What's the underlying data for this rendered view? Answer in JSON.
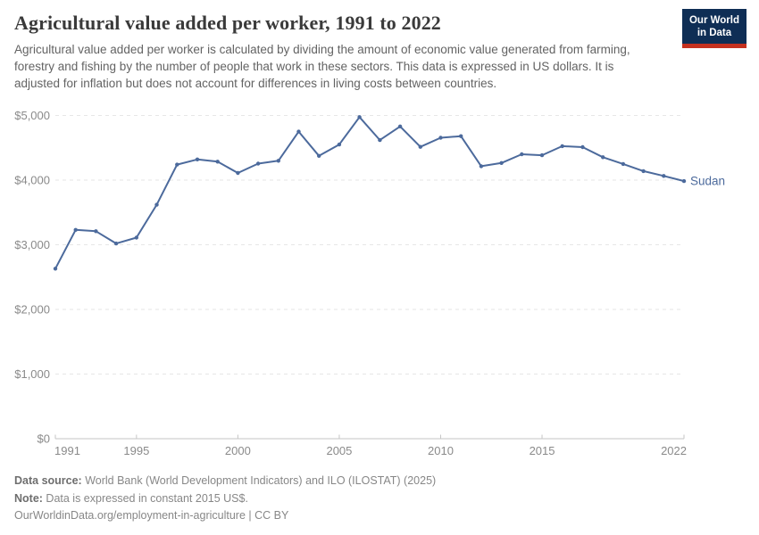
{
  "header": {
    "title": "Agricultural value added per worker, 1991 to 2022",
    "subtitle": "Agricultural value added per worker is calculated by dividing the amount of economic value generated from farming, forestry and fishing by the number of people that work in these sectors. This data is expressed in US dollars. It is adjusted for inflation but does not account for differences in living costs between countries.",
    "logo_line1": "Our World",
    "logo_line2": "in Data"
  },
  "chart_data": {
    "type": "line",
    "title": "Agricultural value added per worker, 1991 to 2022",
    "x": [
      1991,
      1992,
      1993,
      1994,
      1995,
      1996,
      1997,
      1998,
      1999,
      2000,
      2001,
      2002,
      2003,
      2004,
      2005,
      2006,
      2007,
      2008,
      2009,
      2010,
      2011,
      2012,
      2013,
      2014,
      2015,
      2016,
      2017,
      2018,
      2019,
      2020,
      2021,
      2022
    ],
    "series": [
      {
        "name": "Sudan",
        "color": "#4C6A9C",
        "values": [
          2630,
          3230,
          3210,
          3020,
          3110,
          3620,
          4240,
          4320,
          4285,
          4110,
          4255,
          4300,
          4750,
          4375,
          4550,
          4975,
          4620,
          4830,
          4515,
          4655,
          4680,
          4215,
          4265,
          4400,
          4385,
          4525,
          4510,
          4355,
          4250,
          4140,
          4065,
          3985
        ]
      }
    ],
    "xlim": [
      1991,
      2022
    ],
    "ylim": [
      0,
      5000
    ],
    "x_ticks": [
      1991,
      1995,
      2000,
      2005,
      2010,
      2015,
      2022
    ],
    "y_ticks": [
      0,
      1000,
      2000,
      3000,
      4000,
      5000
    ],
    "y_tick_labels": [
      "$0",
      "$1,000",
      "$2,000",
      "$3,000",
      "$4,000",
      "$5,000"
    ],
    "grid": "horizontal-dashed",
    "legend_position": "end-of-line-label",
    "end_label": "Sudan",
    "unit": "constant 2015 US$"
  },
  "footer": {
    "source_label": "Data source:",
    "source_text": " World Bank (World Development Indicators) and ILO (ILOSTAT) (2025)",
    "note_label": "Note:",
    "note_text": " Data is expressed in constant 2015 US$.",
    "url": "OurWorldinData.org/employment-in-agriculture",
    "license": " | CC BY"
  },
  "colors": {
    "accent_blue": "#4C6A9C",
    "logo_navy": "#0F2E55",
    "logo_red": "#C5311F",
    "grid": "#E6E6E6",
    "axis": "#C6C6C6",
    "tick_text": "#8A8A8A",
    "title_text": "#3A3A3A",
    "subtitle_text": "#636363",
    "footer_text": "#878787"
  }
}
